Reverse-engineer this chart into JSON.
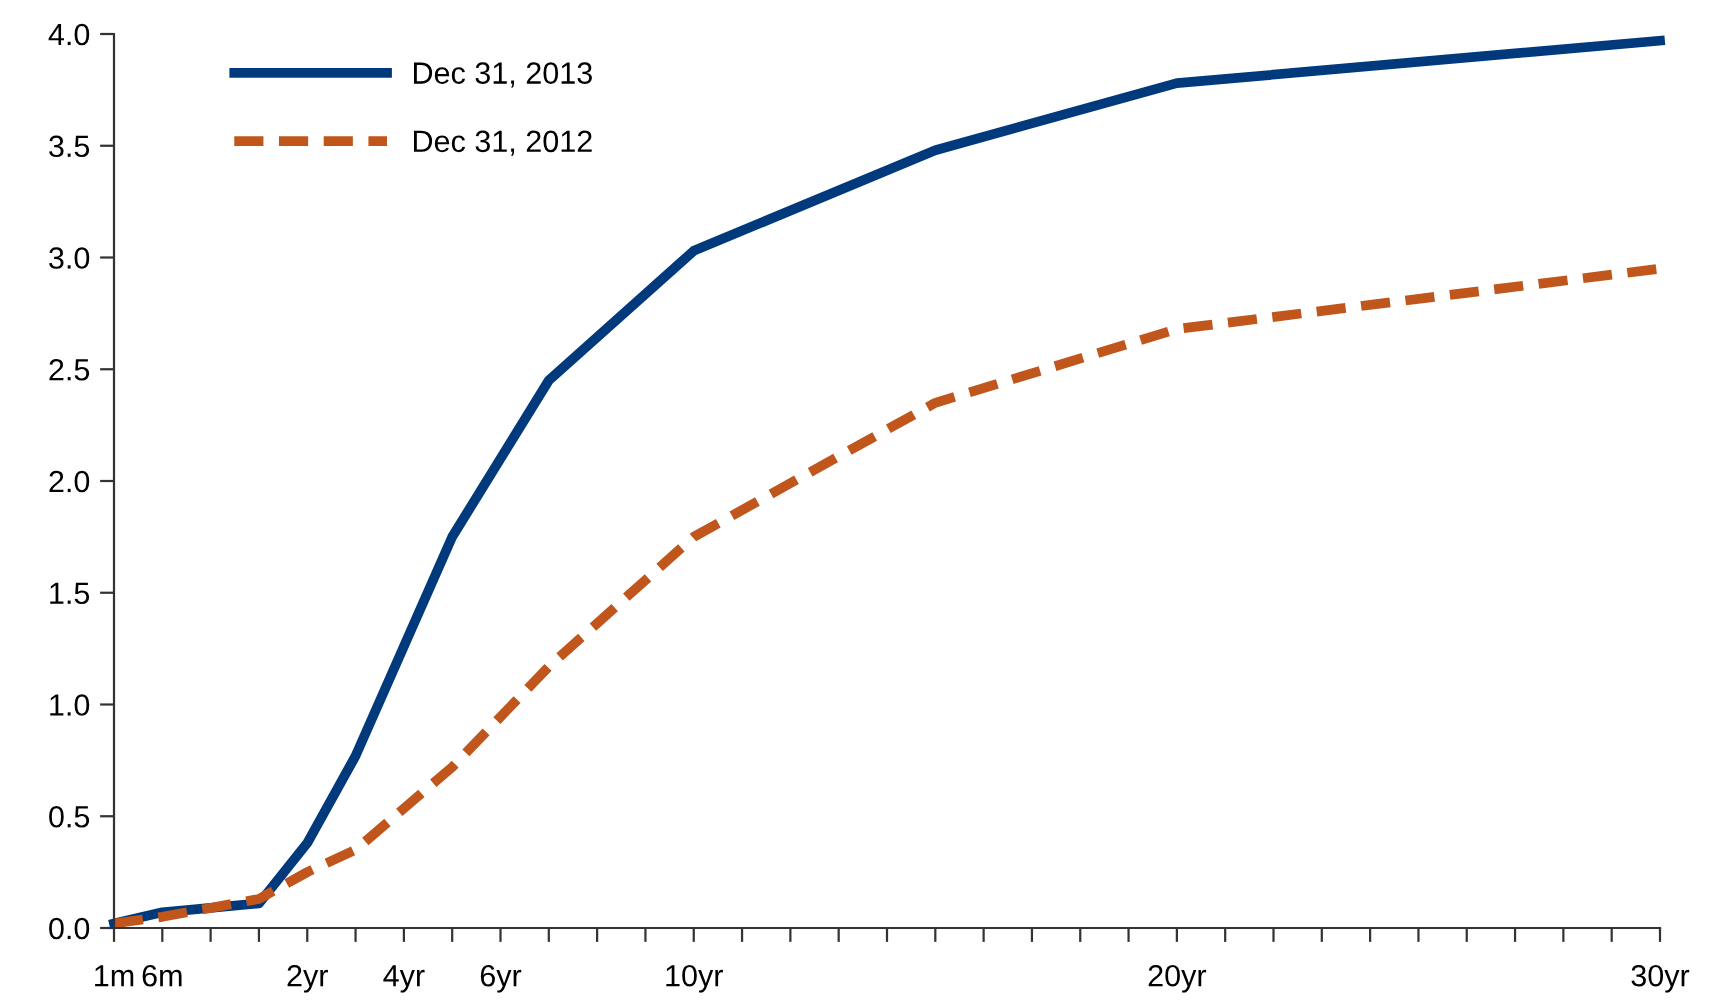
{
  "chart_data": {
    "type": "line",
    "categories": [
      "1m",
      "6m",
      null,
      null,
      "2yr",
      null,
      "4yr",
      null,
      "6yr",
      null,
      null,
      null,
      "10yr",
      null,
      null,
      null,
      null,
      null,
      null,
      null,
      null,
      null,
      "20yr",
      null,
      null,
      null,
      null,
      null,
      null,
      null,
      null,
      null,
      "30yr"
    ],
    "series": [
      {
        "name": "Dec 31, 2013",
        "color": "#003a7d",
        "line_style": "solid",
        "values": [
          0.02,
          0.07,
          null,
          0.11,
          0.38,
          0.77,
          null,
          1.75,
          null,
          2.45,
          null,
          null,
          3.03,
          null,
          null,
          null,
          null,
          3.48,
          null,
          null,
          null,
          null,
          3.78,
          null,
          null,
          null,
          null,
          null,
          null,
          null,
          null,
          null,
          3.97
        ]
      },
      {
        "name": "Dec 31, 2012",
        "color": "#c0561c",
        "line_style": "dashed",
        "values": [
          0.02,
          0.05,
          null,
          0.13,
          0.25,
          0.35,
          null,
          0.72,
          null,
          1.17,
          null,
          null,
          1.75,
          null,
          null,
          null,
          null,
          2.35,
          null,
          null,
          null,
          null,
          2.68,
          null,
          null,
          null,
          null,
          null,
          null,
          null,
          null,
          null,
          2.95
        ]
      }
    ],
    "ylim": [
      0,
      4.0
    ],
    "yticks": [
      {
        "value": 0,
        "label": "0.0"
      },
      {
        "value": 0.5,
        "label": "0.5"
      },
      {
        "value": 1,
        "label": "1.0"
      },
      {
        "value": 1.5,
        "label": "1.5"
      },
      {
        "value": 2,
        "label": "2.0"
      },
      {
        "value": 2.5,
        "label": "2.5"
      },
      {
        "value": 3,
        "label": "3.0"
      },
      {
        "value": 3.5,
        "label": "3.5"
      },
      {
        "value": 4,
        "label": "4.0"
      }
    ],
    "grid": false,
    "legend": "top left",
    "marker": "none"
  }
}
